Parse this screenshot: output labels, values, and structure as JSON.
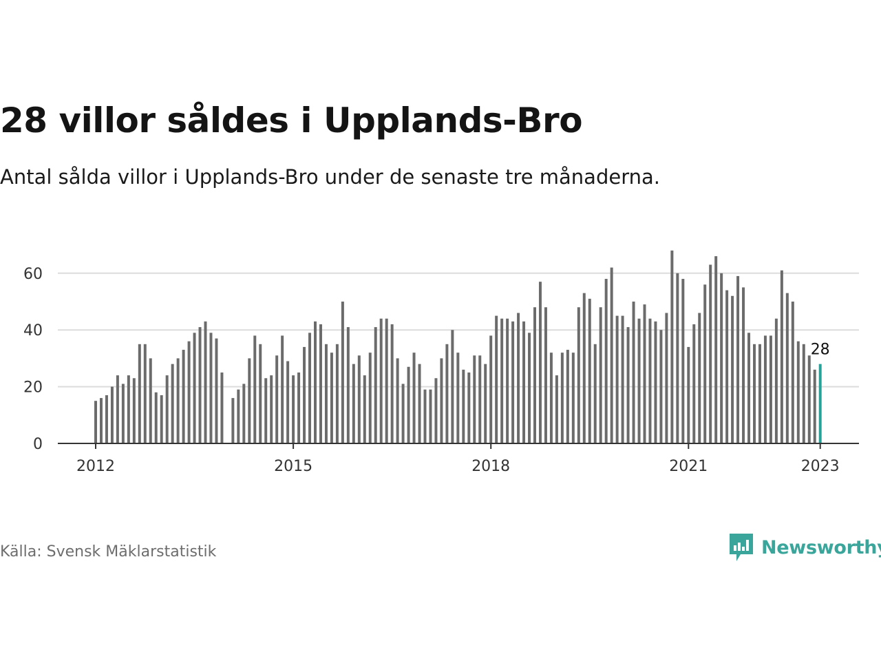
{
  "title": "28 villor såldes i Upplands-Bro",
  "subtitle": "Antal sålda villor i Upplands-Bro under de senaste tre månaderna.",
  "source": "Källa: Svensk Mäklarstatistik",
  "brand": {
    "name": "Newsworthy",
    "icon": "newsworthy-logo-icon",
    "color": "#3aa59a"
  },
  "chart_data": {
    "type": "bar",
    "ylim": [
      0,
      70
    ],
    "yticks": [
      "0",
      "20",
      "40",
      "60"
    ],
    "ytick_values": [
      0,
      20,
      40,
      60
    ],
    "xticks": [
      "2012",
      "2015",
      "2018",
      "2021",
      "2023"
    ],
    "xtick_values": [
      "2012-01",
      "2015-01",
      "2018-01",
      "2021-01",
      "2023-01"
    ],
    "grid": true,
    "bar_color": "#6b6b6b",
    "highlight_color": "#2aa198",
    "highlight_label": "28",
    "start_month": "2012-01",
    "values": [
      15,
      16,
      17,
      20,
      24,
      21,
      24,
      23,
      35,
      35,
      30,
      18,
      17,
      24,
      28,
      30,
      33,
      36,
      39,
      41,
      43,
      39,
      37,
      25,
      null,
      16,
      19,
      21,
      30,
      38,
      35,
      23,
      24,
      31,
      38,
      29,
      24,
      25,
      34,
      39,
      43,
      42,
      35,
      32,
      35,
      50,
      41,
      28,
      31,
      24,
      32,
      41,
      44,
      44,
      42,
      30,
      21,
      27,
      32,
      28,
      19,
      19,
      23,
      30,
      35,
      40,
      32,
      26,
      25,
      31,
      31,
      28,
      38,
      45,
      44,
      44,
      43,
      46,
      43,
      39,
      48,
      57,
      48,
      32,
      24,
      32,
      33,
      32,
      48,
      53,
      51,
      35,
      48,
      58,
      62,
      45,
      45,
      41,
      50,
      44,
      49,
      44,
      43,
      40,
      46,
      68,
      60,
      58,
      34,
      42,
      46,
      56,
      63,
      66,
      60,
      54,
      52,
      59,
      55,
      39,
      35,
      35,
      38,
      38,
      44,
      61,
      53,
      50,
      36,
      35,
      31,
      26,
      28
    ]
  }
}
